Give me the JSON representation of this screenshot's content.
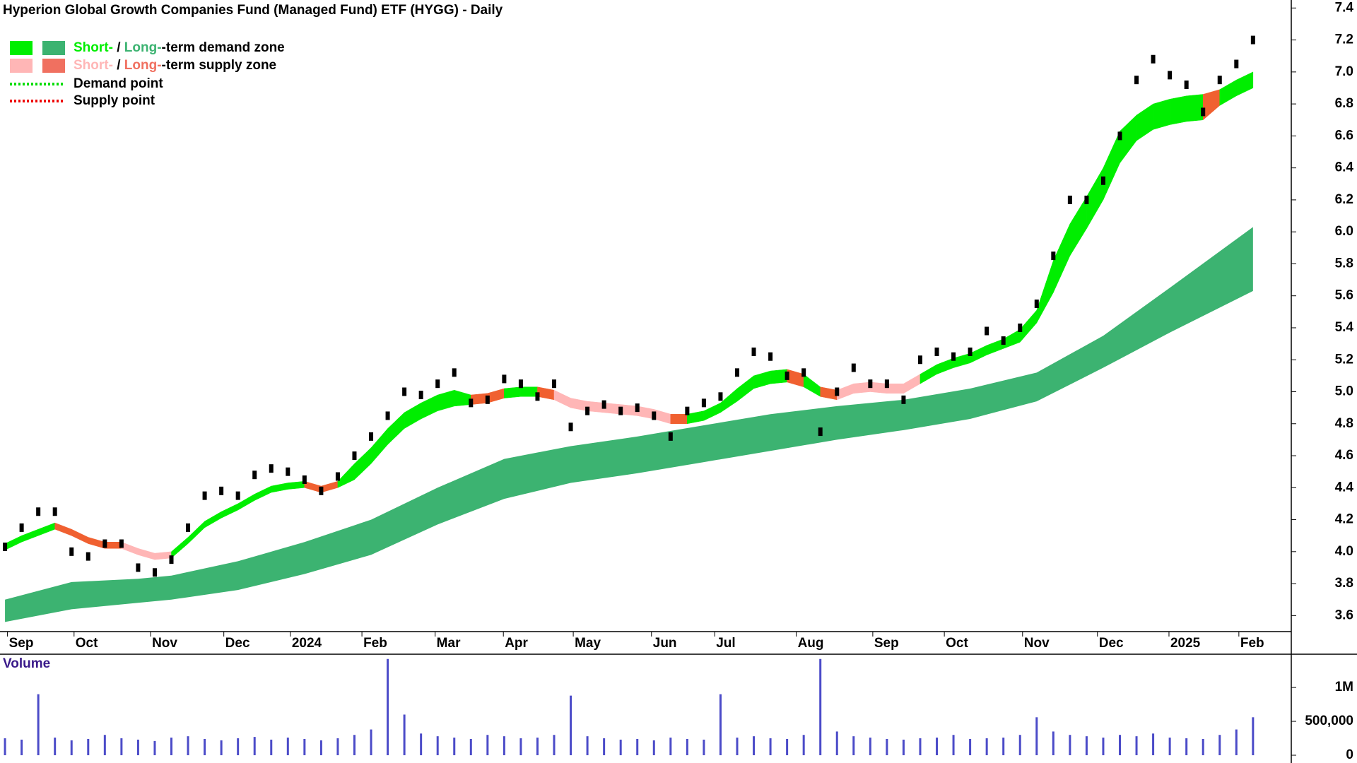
{
  "chart_data": {
    "type": "candlestick",
    "title": "Hyperion Global Growth Companies Fund (Managed Fund) ETF (HYGG) - Daily",
    "legend": [
      {
        "short": "Short-",
        "separator": " / ",
        "long": "Long-",
        "text": "-term demand zone",
        "colors": [
          "#00ee00",
          "#3cb371"
        ]
      },
      {
        "short": "Short-",
        "separator": " / ",
        "long": "Long-",
        "text": "-term supply zone",
        "colors": [
          "#ffb6b6",
          "#f07060"
        ]
      },
      {
        "text": "Demand point",
        "color": "#00dd00"
      },
      {
        "text": "Supply point",
        "color": "#ee0000"
      }
    ],
    "x": [
      0,
      1,
      2,
      3,
      4,
      5,
      6,
      7,
      8,
      9,
      10,
      11,
      12,
      13,
      14,
      15,
      16,
      17,
      18,
      19,
      20,
      21,
      22,
      23,
      24,
      25,
      26,
      27,
      28,
      29,
      30,
      31,
      32,
      33,
      34,
      35,
      36,
      37,
      38,
      39,
      40,
      41,
      42,
      43,
      44,
      45,
      46,
      47,
      48,
      49,
      50,
      51,
      52,
      53,
      54,
      55,
      56,
      57,
      58,
      59,
      60,
      61,
      62,
      63,
      64,
      65,
      66,
      67,
      68,
      69,
      70,
      71,
      72,
      73,
      74,
      75
    ],
    "xlim": [
      -0.3,
      77.3
    ],
    "xticks": [
      {
        "value": 1,
        "label": "Sep"
      },
      {
        "value": 5,
        "label": "Oct"
      },
      {
        "value": 9.6,
        "label": "Nov"
      },
      {
        "value": 14,
        "label": "Dec"
      },
      {
        "value": 18,
        "label": "2024"
      },
      {
        "value": 22.3,
        "label": "Feb"
      },
      {
        "value": 26.7,
        "label": "Mar"
      },
      {
        "value": 30.8,
        "label": "Apr"
      },
      {
        "value": 35,
        "label": "May"
      },
      {
        "value": 39.7,
        "label": "Jun"
      },
      {
        "value": 43.5,
        "label": "Jul"
      },
      {
        "value": 48.4,
        "label": "Aug"
      },
      {
        "value": 53,
        "label": "Sep"
      },
      {
        "value": 57.3,
        "label": "Oct"
      },
      {
        "value": 62,
        "label": "Nov"
      },
      {
        "value": 66.5,
        "label": "Dec"
      },
      {
        "value": 70.8,
        "label": "2025"
      },
      {
        "value": 75,
        "label": "Feb"
      }
    ],
    "ylim": [
      3.5,
      7.45
    ],
    "yticks": [
      3.6,
      3.8,
      {
        "value": 4,
        "label": "4.0"
      },
      4.2,
      4.4,
      4.6,
      4.8,
      {
        "value": 5,
        "label": "5.0"
      },
      5.2,
      5.4,
      5.6,
      5.8,
      {
        "value": 6,
        "label": "6.0"
      },
      6.2,
      6.4,
      6.6,
      6.8,
      {
        "value": 7,
        "label": "7.0"
      },
      7.2,
      7.4
    ],
    "close": {
      "color": "#000000",
      "values": [
        4.03,
        4.15,
        4.25,
        4.25,
        4.0,
        3.97,
        4.05,
        4.05,
        3.9,
        3.87,
        3.95,
        4.15,
        4.35,
        4.38,
        4.35,
        4.48,
        4.52,
        4.5,
        4.45,
        4.38,
        4.47,
        4.6,
        4.72,
        4.85,
        5.0,
        4.98,
        5.05,
        5.12,
        4.93,
        4.95,
        5.08,
        5.05,
        4.97,
        5.05,
        4.78,
        4.88,
        4.92,
        4.88,
        4.9,
        4.85,
        4.72,
        4.88,
        4.93,
        4.97,
        5.12,
        5.25,
        5.22,
        5.1,
        5.12,
        4.75,
        5.0,
        5.15,
        5.05,
        5.05,
        4.95,
        5.2,
        5.25,
        5.22,
        5.25,
        5.38,
        5.32,
        5.4,
        5.55,
        5.85,
        6.2,
        6.2,
        6.32,
        6.6,
        6.95,
        7.08,
        6.98,
        6.92,
        6.75,
        6.95,
        7.05,
        7.2
      ]
    },
    "short_term_zone": {
      "upper": [
        4.05,
        4.1,
        4.14,
        4.18,
        4.14,
        4.09,
        4.06,
        4.06,
        4.02,
        3.99,
        4.0,
        4.09,
        4.19,
        4.25,
        4.3,
        4.36,
        4.41,
        4.43,
        4.44,
        4.41,
        4.44,
        4.55,
        4.65,
        4.77,
        4.87,
        4.93,
        4.98,
        5.01,
        4.98,
        4.99,
        5.02,
        5.03,
        5.03,
        5.01,
        4.96,
        4.94,
        4.93,
        4.92,
        4.91,
        4.89,
        4.86,
        4.86,
        4.88,
        4.93,
        5.02,
        5.1,
        5.13,
        5.14,
        5.11,
        5.03,
        5.01,
        5.05,
        5.06,
        5.05,
        5.05,
        5.11,
        5.17,
        5.21,
        5.24,
        5.29,
        5.33,
        5.39,
        5.51,
        5.82,
        6.05,
        6.22,
        6.4,
        6.63,
        6.73,
        6.8,
        6.83,
        6.85,
        6.86,
        6.89,
        6.95,
        7.0
      ],
      "lower": [
        4.01,
        4.06,
        4.1,
        4.14,
        4.1,
        4.05,
        4.02,
        4.02,
        3.98,
        3.95,
        3.96,
        4.05,
        4.15,
        4.21,
        4.26,
        4.32,
        4.37,
        4.39,
        4.4,
        4.37,
        4.4,
        4.45,
        4.55,
        4.67,
        4.77,
        4.83,
        4.88,
        4.91,
        4.92,
        4.93,
        4.96,
        4.97,
        4.97,
        4.95,
        4.9,
        4.88,
        4.87,
        4.86,
        4.85,
        4.83,
        4.8,
        4.8,
        4.82,
        4.87,
        4.94,
        5.02,
        5.05,
        5.06,
        5.03,
        4.97,
        4.95,
        4.99,
        5.0,
        4.99,
        4.99,
        5.05,
        5.11,
        5.15,
        5.18,
        5.23,
        5.27,
        5.31,
        5.43,
        5.62,
        5.85,
        6.02,
        6.2,
        6.43,
        6.57,
        6.64,
        6.67,
        6.69,
        6.7,
        6.79,
        6.85,
        6.9
      ],
      "segment_colors": [
        "#00ee00",
        "#00ee00",
        "#00ee00",
        "#f06030",
        "#f06030",
        "#f06030",
        "#f06030",
        "#ffb6b6",
        "#ffb6b6",
        "#ffb6b6",
        "#00ee00",
        "#00ee00",
        "#00ee00",
        "#00ee00",
        "#00ee00",
        "#00ee00",
        "#00ee00",
        "#00ee00",
        "#f06030",
        "#f06030",
        "#00ee00",
        "#00ee00",
        "#00ee00",
        "#00ee00",
        "#00ee00",
        "#00ee00",
        "#00ee00",
        "#00ee00",
        "#f06030",
        "#f06030",
        "#00ee00",
        "#00ee00",
        "#f06030",
        "#ffb6b6",
        "#ffb6b6",
        "#ffb6b6",
        "#ffb6b6",
        "#ffb6b6",
        "#ffb6b6",
        "#ffb6b6",
        "#f06030",
        "#00ee00",
        "#00ee00",
        "#00ee00",
        "#00ee00",
        "#00ee00",
        "#00ee00",
        "#f06030",
        "#00ee00",
        "#f06030",
        "#ffb6b6",
        "#ffb6b6",
        "#ffb6b6",
        "#ffb6b6",
        "#ffb6b6",
        "#00ee00",
        "#00ee00",
        "#00ee00",
        "#00ee00",
        "#00ee00",
        "#00ee00",
        "#00ee00",
        "#00ee00",
        "#00ee00",
        "#00ee00",
        "#00ee00",
        "#00ee00",
        "#00ee00",
        "#00ee00",
        "#00ee00",
        "#00ee00",
        "#00ee00",
        "#f06030",
        "#00ee00",
        "#00ee00"
      ]
    },
    "long_term_zone": {
      "color": "#3cb371",
      "x": [
        0,
        4,
        8,
        10,
        14,
        18,
        22,
        26,
        30,
        34,
        38,
        42,
        46,
        50,
        54,
        58,
        62,
        66,
        70,
        75
      ],
      "upper": [
        3.7,
        3.81,
        3.83,
        3.85,
        3.94,
        4.06,
        4.2,
        4.4,
        4.58,
        4.66,
        4.72,
        4.79,
        4.86,
        4.91,
        4.95,
        5.02,
        5.12,
        5.35,
        5.65,
        6.03
      ],
      "lower": [
        3.56,
        3.64,
        3.68,
        3.7,
        3.76,
        3.86,
        3.98,
        4.17,
        4.33,
        4.43,
        4.49,
        4.56,
        4.63,
        4.7,
        4.76,
        4.83,
        4.94,
        5.15,
        5.37,
        5.63
      ]
    },
    "volume": {
      "title": "Volume",
      "color": "#4b4bc8",
      "ylim": [
        0,
        1470000
      ],
      "yticks": [
        0,
        {
          "value": 500000,
          "label": "500,000"
        },
        {
          "value": 1000000,
          "label": "1M"
        }
      ],
      "values": [
        250000,
        230000,
        900000,
        260000,
        220000,
        240000,
        300000,
        250000,
        230000,
        210000,
        260000,
        280000,
        240000,
        220000,
        250000,
        270000,
        230000,
        260000,
        240000,
        220000,
        250000,
        300000,
        380000,
        1420000,
        600000,
        320000,
        280000,
        260000,
        240000,
        300000,
        280000,
        250000,
        260000,
        300000,
        880000,
        280000,
        250000,
        230000,
        240000,
        220000,
        260000,
        240000,
        230000,
        900000,
        260000,
        280000,
        250000,
        240000,
        300000,
        1420000,
        350000,
        280000,
        260000,
        240000,
        230000,
        250000,
        260000,
        300000,
        240000,
        250000,
        260000,
        300000,
        560000,
        350000,
        300000,
        280000,
        260000,
        300000,
        280000,
        320000,
        260000,
        250000,
        240000,
        300000,
        380000,
        560000
      ]
    }
  }
}
